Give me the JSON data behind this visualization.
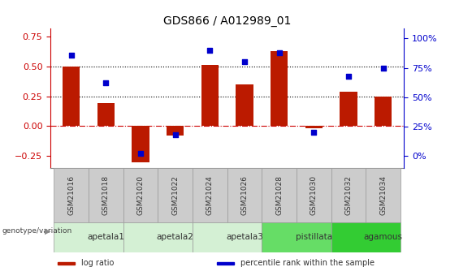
{
  "title": "GDS866 / A012989_01",
  "categories": [
    "GSM21016",
    "GSM21018",
    "GSM21020",
    "GSM21022",
    "GSM21024",
    "GSM21026",
    "GSM21028",
    "GSM21030",
    "GSM21032",
    "GSM21034"
  ],
  "log_ratio": [
    0.5,
    0.19,
    -0.3,
    -0.08,
    0.51,
    0.35,
    0.63,
    -0.02,
    0.29,
    0.25
  ],
  "percentile_rank": [
    86,
    62,
    2,
    18,
    90,
    80,
    88,
    20,
    68,
    75
  ],
  "bar_color": "#bb1a00",
  "dot_color": "#0000cc",
  "groups": [
    {
      "label": "apetala1",
      "start": 0,
      "end": 2,
      "color": "#d4f0d4"
    },
    {
      "label": "apetala2",
      "start": 2,
      "end": 4,
      "color": "#d4f0d4"
    },
    {
      "label": "apetala3",
      "start": 4,
      "end": 6,
      "color": "#d4f0d4"
    },
    {
      "label": "pistillata",
      "start": 6,
      "end": 8,
      "color": "#66dd66"
    },
    {
      "label": "agamous",
      "start": 8,
      "end": 10,
      "color": "#33cc33"
    }
  ],
  "sample_cell_color": "#cccccc",
  "ylim_left": [
    -0.35,
    0.82
  ],
  "ylim_right": [
    -10.5,
    109
  ],
  "yticks_left": [
    -0.25,
    0.0,
    0.25,
    0.5,
    0.75
  ],
  "yticks_right": [
    0,
    25,
    50,
    75,
    100
  ],
  "hlines": [
    0.0,
    0.25,
    0.5
  ],
  "hline_styles": [
    "dashdot",
    "dotted",
    "dotted"
  ],
  "hline_colors": [
    "#cc0000",
    "#000000",
    "#000000"
  ],
  "left_tick_color": "#cc0000",
  "right_tick_color": "#0000cc",
  "legend_items": [
    {
      "label": "log ratio",
      "color": "#bb1a00"
    },
    {
      "label": "percentile rank within the sample",
      "color": "#0000cc"
    }
  ],
  "bar_width": 0.5,
  "genotype_label": "genotype/variation"
}
